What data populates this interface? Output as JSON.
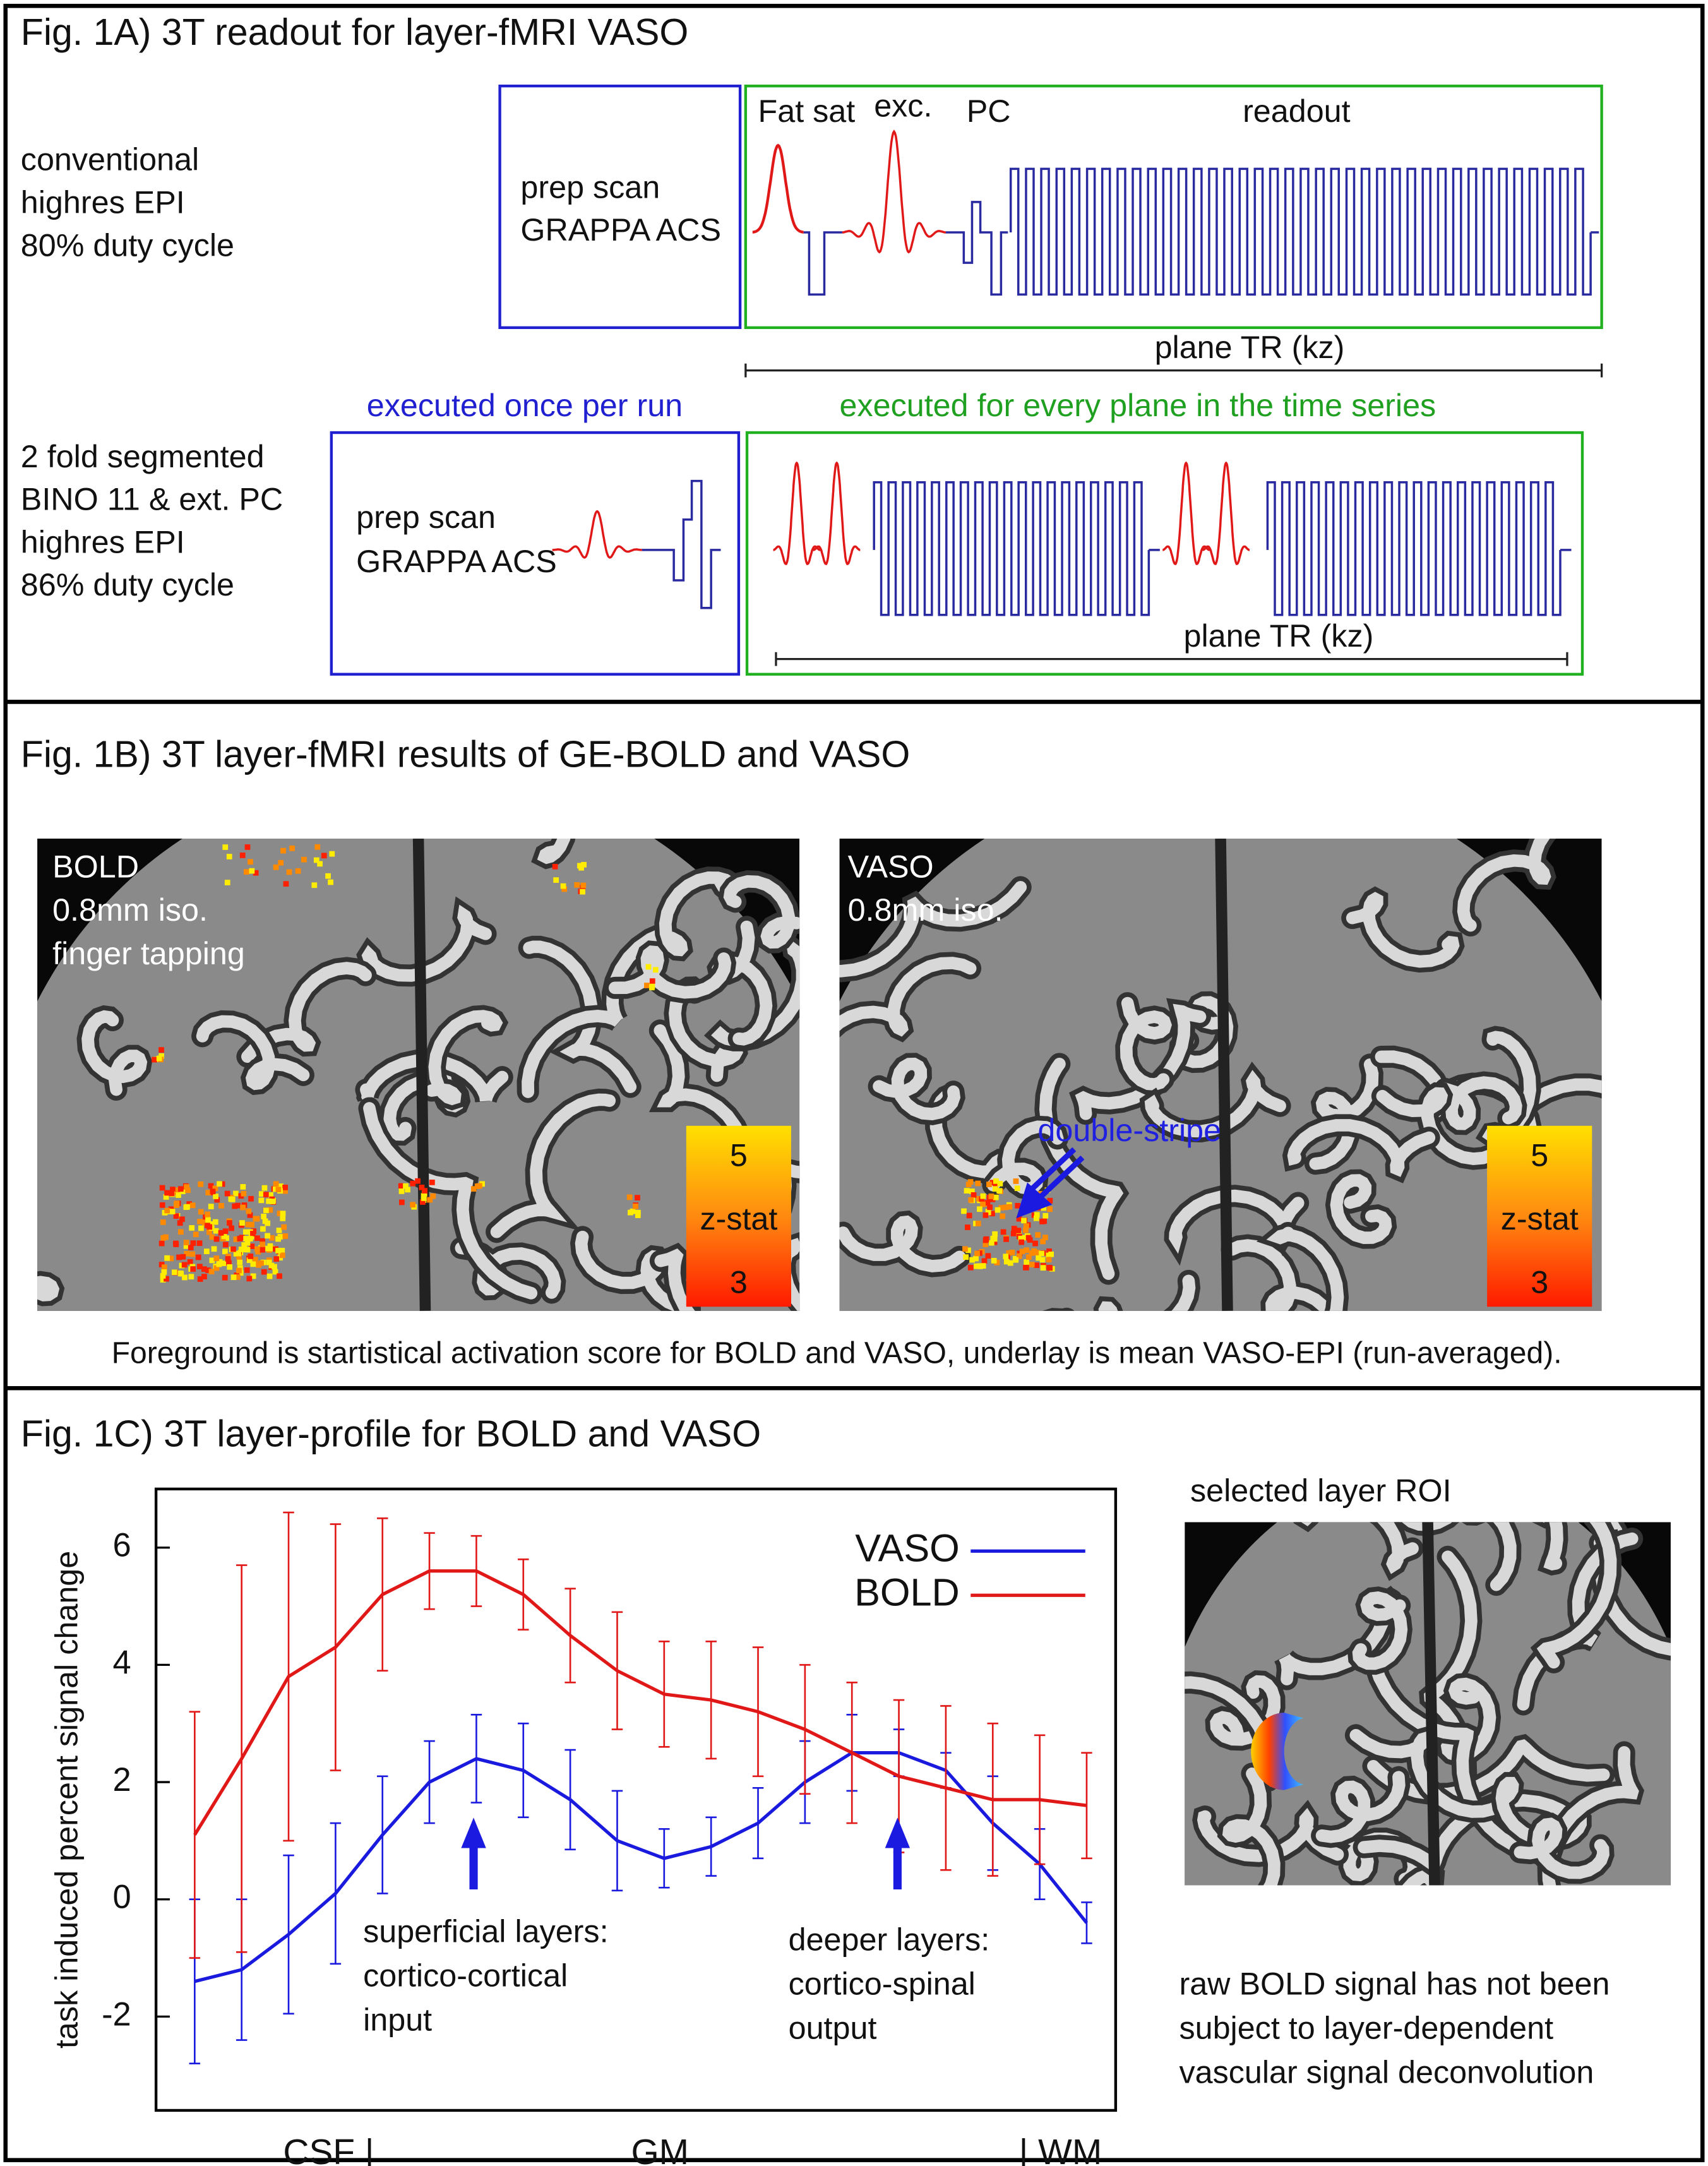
{
  "panel_a": {
    "title": "Fig. 1A) 3T readout for layer-fMRI VASO",
    "row1_label": [
      "conventional",
      "highres EPI",
      "80% duty cycle"
    ],
    "row1_prep": [
      "prep scan",
      "GRAPPA ACS"
    ],
    "pulse_labels": [
      "Fat sat",
      "exc.",
      "PC",
      "readout"
    ],
    "row1_tr": "plane TR (kz)",
    "once_label": "executed once per run",
    "every_label": "executed for every plane in the time series",
    "row2_label": [
      "2 fold segmented",
      "BINO 11 & ext. PC",
      "highres EPI",
      "86% duty cycle"
    ],
    "row2_prep": [
      "prep scan",
      "GRAPPA ACS"
    ],
    "row2_tr": "plane TR (kz)"
  },
  "panel_b": {
    "title": "Fig. 1B) 3T layer-fMRI results of GE-BOLD and VASO",
    "bold_label": [
      "BOLD",
      "0.8mm iso.",
      "finger tapping"
    ],
    "vaso_label": [
      "VASO",
      "0.8mm iso."
    ],
    "bold_colorbar": [
      "5",
      "z-stat",
      "3"
    ],
    "vaso_colorbar": [
      "5",
      "z-stat",
      "3"
    ],
    "arrow_label": "double-stripe",
    "caption": "Foreground is startistical activation score for BOLD and VASO, underlay is mean VASO-EPI (run-averaged)."
  },
  "panel_c": {
    "title": "Fig. 1C) 3T layer-profile for BOLD and VASO",
    "roi_label": "selected layer ROI",
    "note": [
      "raw BOLD signal has not been",
      "subject to layer-dependent",
      "vascular signal deconvolution"
    ]
  },
  "chart_data": {
    "type": "line",
    "ylabel": "task induced percent signal change",
    "x_labels": [
      "CSF |",
      "GM",
      "| WM"
    ],
    "categories": [
      null,
      null,
      null,
      null,
      null,
      null,
      null,
      null,
      null,
      null,
      null,
      null,
      null,
      null,
      null,
      null,
      null,
      null,
      null,
      null
    ],
    "series": [
      {
        "name": "VASO",
        "color": "#1a1adf",
        "values": [
          -1.4,
          -1.2,
          -0.6,
          0.1,
          1.1,
          2.0,
          2.4,
          2.2,
          1.7,
          1.0,
          0.7,
          0.9,
          1.3,
          2.0,
          2.5,
          2.5,
          2.2,
          1.3,
          0.6,
          -0.4
        ],
        "errors": [
          1.4,
          1.2,
          1.35,
          1.2,
          1.0,
          0.7,
          0.75,
          0.8,
          0.85,
          0.85,
          0.5,
          0.5,
          0.6,
          0.7,
          0.65,
          0.4,
          0.3,
          0.8,
          0.6,
          0.35
        ]
      },
      {
        "name": "BOLD",
        "color": "#e01818",
        "values": [
          1.1,
          2.4,
          3.8,
          4.3,
          5.2,
          5.6,
          5.6,
          5.2,
          4.5,
          3.9,
          3.5,
          3.4,
          3.2,
          2.9,
          2.5,
          2.1,
          1.9,
          1.7,
          1.7,
          1.6
        ],
        "errors": [
          2.1,
          3.3,
          2.8,
          2.1,
          1.3,
          0.65,
          0.6,
          0.6,
          0.8,
          1.0,
          0.9,
          1.0,
          1.1,
          1.1,
          1.2,
          1.3,
          1.4,
          1.3,
          1.1,
          0.9
        ]
      }
    ],
    "ylim": [
      -3.6,
      7
    ],
    "yticks": [
      -2,
      0,
      2,
      4,
      6
    ],
    "grid": false,
    "legend": "upper right",
    "annotations": [
      [
        "superficial layers:",
        "cortico-cortical",
        "input"
      ],
      [
        "deeper layers:",
        "cortico-spinal",
        "output"
      ]
    ]
  }
}
